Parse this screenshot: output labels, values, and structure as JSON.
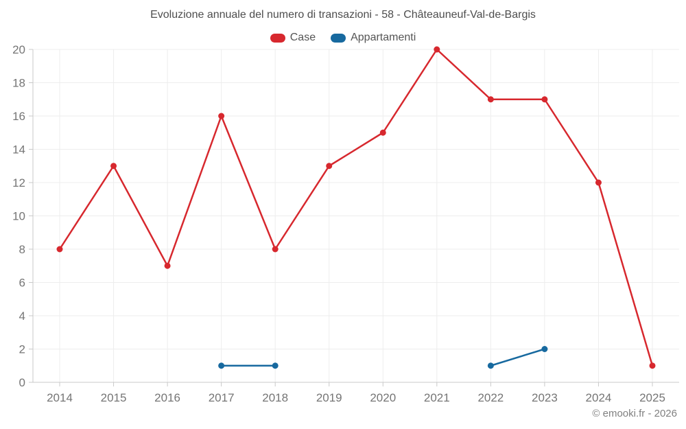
{
  "chart_data": {
    "type": "line",
    "title": "Evoluzione annuale del numero di transazioni - 58 - Châteauneuf-Val-de-Bargis",
    "categories": [
      "2014",
      "2015",
      "2016",
      "2017",
      "2018",
      "2019",
      "2020",
      "2021",
      "2022",
      "2023",
      "2024",
      "2025"
    ],
    "series": [
      {
        "name": "Case",
        "color": "#d7282e",
        "values": [
          8,
          13,
          7,
          16,
          8,
          13,
          15,
          20,
          17,
          17,
          12,
          1
        ]
      },
      {
        "name": "Appartamenti",
        "color": "#17699f",
        "values": [
          null,
          null,
          null,
          1,
          1,
          null,
          null,
          null,
          1,
          2,
          null,
          null
        ]
      }
    ],
    "xlabel": "",
    "ylabel": "",
    "ylim": [
      0,
      20
    ],
    "ytick_step": 2,
    "grid": true,
    "legend_position": "top",
    "watermark": "© emooki.fr - 2026",
    "colors": {
      "axis": "#c9c9c9",
      "grid": "#ededed",
      "tick_label": "#757575",
      "title_text": "#4d4d4d",
      "watermark_text": "#808080"
    }
  }
}
